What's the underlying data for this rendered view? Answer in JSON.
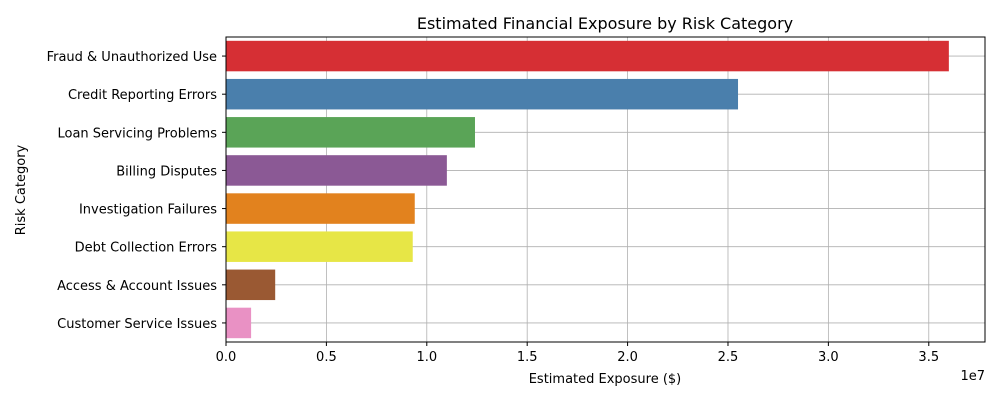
{
  "chart_data": {
    "type": "bar",
    "orientation": "horizontal",
    "title": "Estimated Financial Exposure by Risk Category",
    "xlabel": "Estimated Exposure ($)",
    "ylabel": "Risk Category",
    "xlim": [
      0,
      37800000
    ],
    "x_ticks": [
      0,
      5000000,
      10000000,
      15000000,
      20000000,
      25000000,
      30000000,
      35000000
    ],
    "x_tick_labels": [
      "0.0",
      "0.5",
      "1.0",
      "1.5",
      "2.0",
      "2.5",
      "3.0",
      "3.5"
    ],
    "x_offset_label": "1e7",
    "grid": true,
    "categories": [
      "Fraud & Unauthorized Use",
      "Credit Reporting Errors",
      "Loan Servicing Problems",
      "Billing Disputes",
      "Investigation Failures",
      "Debt Collection Errors",
      "Access & Account Issues",
      "Customer Service Issues"
    ],
    "values": [
      36000000,
      25500000,
      12400000,
      11000000,
      9400000,
      9300000,
      2450000,
      1250000
    ],
    "colors": [
      "#d62f34",
      "#4a7fac",
      "#5aa457",
      "#8b5995",
      "#e2821e",
      "#e7e646",
      "#9a5933",
      "#e991c4"
    ]
  }
}
